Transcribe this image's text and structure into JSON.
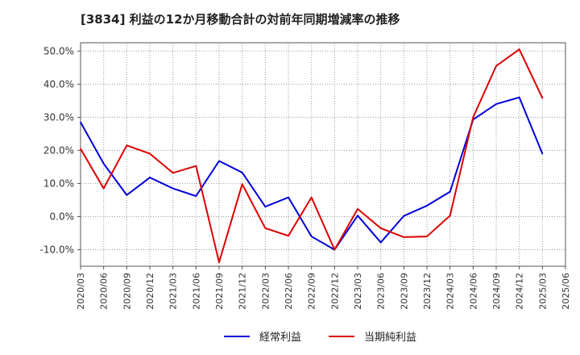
{
  "colors": {
    "series1": "#0000dd",
    "series2": "#dd0000"
  },
  "chart_data": {
    "type": "line",
    "title": "[3834]  利益の12か月移動合計の対前年同期増減率の推移",
    "categories": [
      "2020/03",
      "2020/06",
      "2020/09",
      "2020/12",
      "2021/03",
      "2021/06",
      "2021/09",
      "2021/12",
      "2022/03",
      "2022/06",
      "2022/09",
      "2022/12",
      "2023/03",
      "2023/06",
      "2023/09",
      "2023/12",
      "2024/03",
      "2024/06",
      "2024/09",
      "2024/12",
      "2025/03",
      "2025/06"
    ],
    "series": [
      {
        "name": "経常利益",
        "values": [
          28.5,
          16.0,
          6.5,
          11.8,
          8.5,
          6.2,
          16.8,
          13.3,
          3.0,
          5.8,
          -6.0,
          -10.0,
          0.3,
          -7.8,
          0.2,
          3.3,
          7.5,
          29.3,
          34.0,
          36.0,
          19.0,
          null
        ]
      },
      {
        "name": "当期純利益",
        "values": [
          20.5,
          8.5,
          21.5,
          19.0,
          13.2,
          15.3,
          -13.8,
          9.8,
          -3.5,
          -5.8,
          5.8,
          -10.0,
          2.3,
          -3.5,
          -6.2,
          -6.0,
          0.3,
          30.0,
          45.5,
          50.5,
          35.8,
          null
        ]
      }
    ],
    "y_ticks": [
      "50.0%",
      "40.0%",
      "30.0%",
      "20.0%",
      "10.0%",
      "0.0%",
      "-10.0%"
    ],
    "y_tick_values": [
      50,
      40,
      30,
      20,
      10,
      0,
      -10
    ],
    "ylim": [
      -15,
      52.5
    ],
    "grid": true,
    "legend": "bottom-center",
    "xlabel": "",
    "ylabel": ""
  }
}
